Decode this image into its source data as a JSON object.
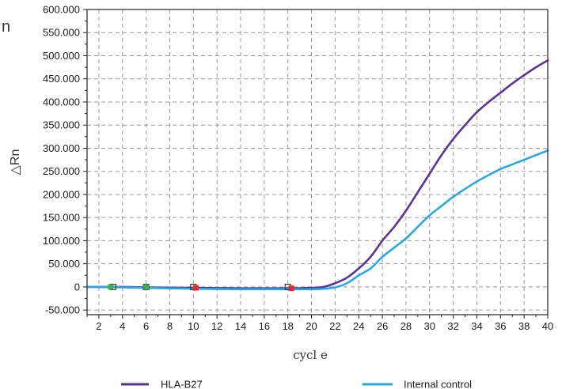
{
  "chart_data": {
    "type": "line",
    "title": "",
    "xlabel": "cycl e",
    "ylabel": "△Rn",
    "xlim": [
      1,
      40
    ],
    "ylim": [
      -60000,
      600000
    ],
    "x_ticks": [
      2,
      4,
      6,
      8,
      10,
      12,
      14,
      16,
      18,
      20,
      22,
      24,
      26,
      28,
      30,
      32,
      34,
      36,
      38,
      40
    ],
    "y_ticks": [
      -50000,
      0,
      50000,
      100000,
      150000,
      200000,
      250000,
      300000,
      350000,
      400000,
      450000,
      500000,
      550000,
      600000
    ],
    "y_tick_labels": [
      "-50.000",
      "0",
      "50.000",
      "100.000",
      "150.000",
      "200.000",
      "250.000",
      "300.000",
      "350.000",
      "400.000",
      "450.000",
      "500.000",
      "550.000",
      "600.000"
    ],
    "grid": true,
    "legend_position": "bottom",
    "x": [
      1,
      2,
      4,
      6,
      8,
      10,
      12,
      14,
      16,
      18,
      20,
      21,
      22,
      23,
      24,
      25,
      26,
      27,
      28,
      29,
      30,
      31,
      32,
      33,
      34,
      35,
      36,
      37,
      38,
      39,
      40
    ],
    "series": [
      {
        "name": "HLA-B27",
        "color": "#5b3596",
        "values": [
          0,
          0,
          0,
          -1000,
          -1500,
          -2000,
          -2500,
          -3000,
          -3000,
          -3000,
          -2000,
          0,
          8000,
          20000,
          40000,
          65000,
          100000,
          130000,
          165000,
          205000,
          245000,
          285000,
          320000,
          350000,
          378000,
          400000,
          420000,
          440000,
          458000,
          475000,
          490000
        ]
      },
      {
        "name": "Internal control",
        "color": "#29a8e0",
        "values": [
          0,
          0,
          -1000,
          -2000,
          -3000,
          -4000,
          -4500,
          -5000,
          -5000,
          -5000,
          -5000,
          -4000,
          -1000,
          8000,
          25000,
          40000,
          65000,
          85000,
          105000,
          130000,
          155000,
          175000,
          195000,
          212000,
          228000,
          242000,
          255000,
          265000,
          275000,
          285000,
          295000
        ]
      }
    ],
    "markers": [
      {
        "x": 3.0,
        "y": 0,
        "color": "#3cb04a",
        "outline_x": 3.2
      },
      {
        "x": 6.0,
        "y": 0,
        "color": "#3cb04a",
        "outline_x": 6.0
      },
      {
        "x": 10.2,
        "y": -2000,
        "color": "#e8262d",
        "outline_x": 10.0
      },
      {
        "x": 18.3,
        "y": -3000,
        "color": "#e8262d",
        "outline_x": 18.0
      }
    ]
  },
  "stray_text": "n"
}
